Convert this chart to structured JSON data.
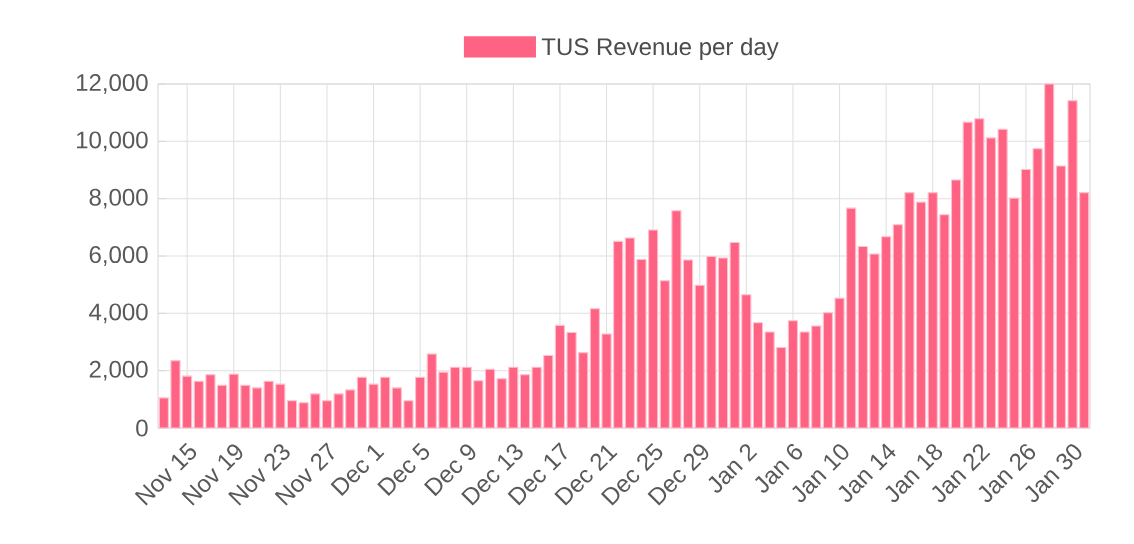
{
  "chart_data": {
    "type": "bar",
    "categories": [
      null,
      null,
      "Nov 15",
      null,
      null,
      null,
      "Nov 19",
      null,
      null,
      null,
      "Nov 23",
      null,
      null,
      null,
      "Nov 27",
      null,
      null,
      null,
      "Dec 1",
      null,
      null,
      null,
      "Dec 5",
      null,
      null,
      null,
      "Dec 9",
      null,
      null,
      null,
      "Dec 13",
      null,
      null,
      null,
      "Dec 17",
      null,
      null,
      null,
      "Dec 21",
      null,
      null,
      null,
      "Dec 25",
      null,
      null,
      null,
      "Dec 29",
      null,
      null,
      null,
      "Jan 2",
      null,
      null,
      null,
      "Jan 6",
      null,
      null,
      null,
      "Jan 10",
      null,
      null,
      null,
      "Jan 14",
      null,
      null,
      null,
      "Jan 18",
      null,
      null,
      null,
      "Jan 22",
      null,
      null,
      null,
      "Jan 26",
      null,
      null,
      null,
      "Jan 30",
      null
    ],
    "series": [
      {
        "name": "TUS Revenue per day",
        "color": "#ff6384",
        "values": [
          1050,
          2350,
          1810,
          1630,
          1860,
          1490,
          1880,
          1490,
          1400,
          1630,
          1530,
          950,
          880,
          1190,
          950,
          1190,
          1330,
          1770,
          1530,
          1770,
          1400,
          950,
          1770,
          2580,
          1950,
          2120,
          2120,
          1650,
          2050,
          1720,
          2120,
          1860,
          2120,
          2530,
          3580,
          3330,
          2630,
          4160,
          3280,
          6510,
          6630,
          5880,
          6910,
          5140,
          7580,
          5860,
          4980,
          5980,
          5930,
          6470,
          4650,
          3670,
          3350,
          2810,
          3740,
          3350,
          3560,
          4020,
          4530,
          7670,
          6330,
          6070,
          6670,
          7090,
          8210,
          7880,
          8210,
          7440,
          8650,
          10670,
          10790,
          10120,
          10420,
          8020,
          9020,
          9740,
          12000,
          9140,
          11420,
          8210
        ]
      }
    ],
    "ylim": [
      0,
      12000
    ],
    "yticks": [
      0,
      {
        "value": 2000,
        "label": "2,000"
      },
      {
        "value": 4000,
        "label": "4,000"
      },
      {
        "value": 6000,
        "label": "6,000"
      },
      {
        "value": 8000,
        "label": "8,000"
      },
      {
        "value": 10000,
        "label": "10,000"
      },
      {
        "value": 12000,
        "label": "12,000"
      }
    ],
    "grid": true,
    "legend": "top"
  }
}
